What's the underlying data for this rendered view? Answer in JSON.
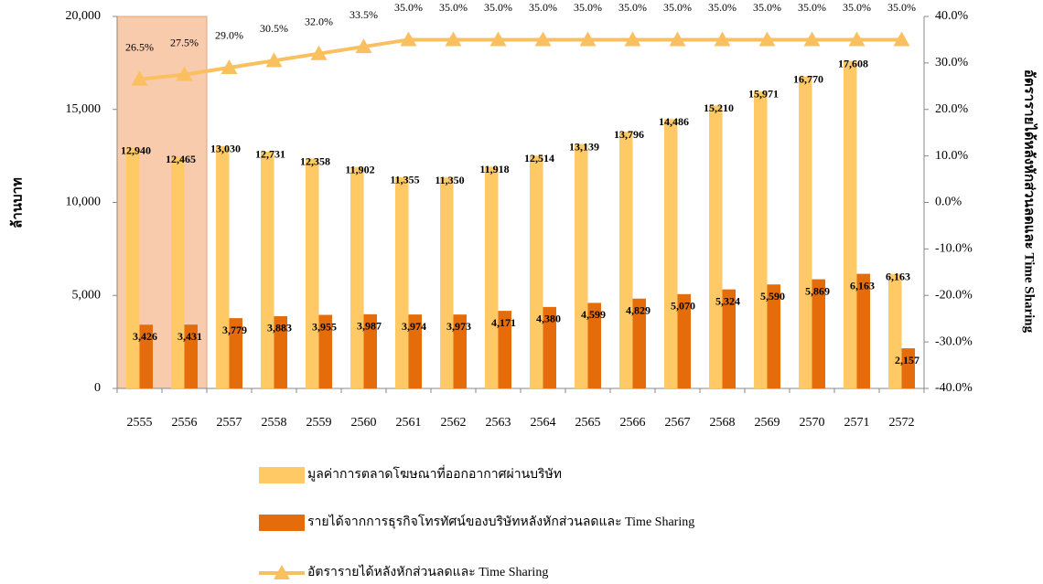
{
  "chart_data": {
    "type": "bar",
    "categories": [
      "2555",
      "2556",
      "2557",
      "2558",
      "2559",
      "2560",
      "2561",
      "2562",
      "2563",
      "2564",
      "2565",
      "2566",
      "2567",
      "2568",
      "2569",
      "2570",
      "2571",
      "2572"
    ],
    "y_label": "ล้านบาท",
    "y2_label": "อัตรารายได้หลังหักส่วนลดและ Time Sharing",
    "ylim": [
      0,
      20000
    ],
    "yticks": [
      {
        "value": 0,
        "label": "0"
      },
      {
        "value": 5000,
        "label": "5,000"
      },
      {
        "value": 10000,
        "label": "10,000"
      },
      {
        "value": 15000,
        "label": "15,000"
      },
      {
        "value": 20000,
        "label": "20,000"
      }
    ],
    "y2lim": [
      -40,
      40
    ],
    "y2ticks": [
      {
        "value": -40,
        "label": "-40.0%"
      },
      {
        "value": -30,
        "label": "-30.0%"
      },
      {
        "value": -20,
        "label": "-20.0%"
      },
      {
        "value": -10,
        "label": "-10.0%"
      },
      {
        "value": 0,
        "label": "0.0%"
      },
      {
        "value": 10,
        "label": "10.0%"
      },
      {
        "value": 20,
        "label": "20.0%"
      },
      {
        "value": 30,
        "label": "30.0%"
      },
      {
        "value": 40,
        "label": "40.0%"
      }
    ],
    "series": [
      {
        "name": "มูลค่าการตลาดโฆษณาที่ออกอากาศผ่านบริษัท",
        "type": "bar",
        "color": "#FFC966",
        "values": [
          12940,
          12465,
          13030,
          12731,
          12358,
          11902,
          11355,
          11350,
          11918,
          12514,
          13139,
          13796,
          14486,
          15210,
          15971,
          16770,
          17608,
          6163
        ],
        "value_labels": [
          "12,940",
          "12,465",
          "13,030",
          "12,731",
          "12,358",
          "11,902",
          "11,355",
          "11,350",
          "11,918",
          "12,514",
          "13,139",
          "13,796",
          "14,486",
          "15,210",
          "15,971",
          "16,770",
          "17,608",
          "6,163"
        ]
      },
      {
        "name": "รายได้จากการธุรกิจโทรทัศน์ของบริษัทหลังหักส่วนลดและ Time Sharing",
        "type": "bar",
        "color": "#E46C0A",
        "values": [
          3426,
          3431,
          3779,
          3883,
          3955,
          3987,
          3974,
          3973,
          4171,
          4380,
          4599,
          4829,
          5070,
          5324,
          5590,
          5869,
          6163,
          2157
        ],
        "value_labels": [
          "3,426",
          "3,431",
          "3,779",
          "3,883",
          "3,955",
          "3,987",
          "3,974",
          "3,973",
          "4,171",
          "4,380",
          "4,599",
          "4,829",
          "5,070",
          "5,324",
          "5,590",
          "5,869",
          "6,163",
          "2,157"
        ]
      },
      {
        "name": "อัตรารายได้หลังหักส่วนลดและ Time Sharing",
        "type": "line",
        "axis": "y2",
        "color": "#FAC060",
        "values": [
          26.5,
          27.5,
          29.0,
          30.5,
          32.0,
          33.5,
          35.0,
          35.0,
          35.0,
          35.0,
          35.0,
          35.0,
          35.0,
          35.0,
          35.0,
          35.0,
          35.0,
          35.0
        ],
        "value_labels": [
          "26.5%",
          "27.5%",
          "29.0%",
          "30.5%",
          "32.0%",
          "33.5%",
          "35.0%",
          "35.0%",
          "35.0%",
          "35.0%",
          "35.0%",
          "35.0%",
          "35.0%",
          "35.0%",
          "35.0%",
          "35.0%",
          "35.0%",
          "35.0%"
        ]
      }
    ]
  }
}
